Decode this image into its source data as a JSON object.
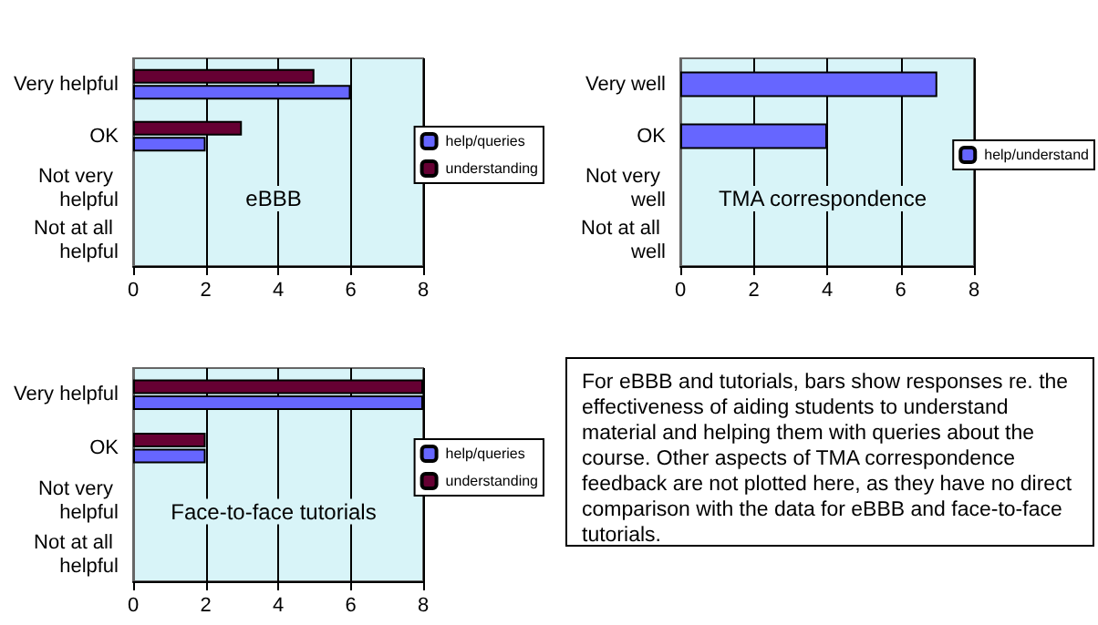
{
  "chart_data": [
    {
      "type": "bar",
      "orientation": "horizontal",
      "title": "eBBB",
      "categories": [
        "Very helpful",
        "OK",
        "Not very helpful",
        "Not at all helpful"
      ],
      "series": [
        {
          "name": "help/queries",
          "color": "#6666ff",
          "values": [
            6,
            2,
            0,
            0
          ]
        },
        {
          "name": "understanding",
          "color": "#660033",
          "values": [
            5,
            3,
            0,
            0
          ]
        }
      ],
      "xlim": [
        0,
        8
      ],
      "xticks": [
        0,
        2,
        4,
        6,
        8
      ],
      "grid": "x",
      "legend": "right"
    },
    {
      "type": "bar",
      "orientation": "horizontal",
      "title": "TMA correspondence",
      "categories": [
        "Very well",
        "OK",
        "Not very well",
        "Not at all well"
      ],
      "series": [
        {
          "name": "help/understand",
          "color": "#6666ff",
          "values": [
            7,
            4,
            0,
            0
          ]
        }
      ],
      "xlim": [
        0,
        8
      ],
      "xticks": [
        0,
        2,
        4,
        6,
        8
      ],
      "grid": "x",
      "legend": "right"
    },
    {
      "type": "bar",
      "orientation": "horizontal",
      "title": "Face-to-face tutorials",
      "categories": [
        "Very helpful",
        "OK",
        "Not very helpful",
        "Not at all helpful"
      ],
      "series": [
        {
          "name": "help/queries",
          "color": "#6666ff",
          "values": [
            8,
            2,
            0,
            0
          ]
        },
        {
          "name": "understanding",
          "color": "#660033",
          "values": [
            8,
            2,
            0,
            0
          ]
        }
      ],
      "xlim": [
        0,
        8
      ],
      "xticks": [
        0,
        2,
        4,
        6,
        8
      ],
      "grid": "x",
      "legend": "right"
    },
    {
      "type": "other",
      "annotations": [
        "For eBBB and tutorials, bars show responses re. the effectiveness of aiding students to understand material and helping them with queries about the course. Other aspects of TMA correspondence feedback are not plotted here, as they have no direct comparison with the data for eBBB and face-to-face tutorials."
      ]
    }
  ]
}
